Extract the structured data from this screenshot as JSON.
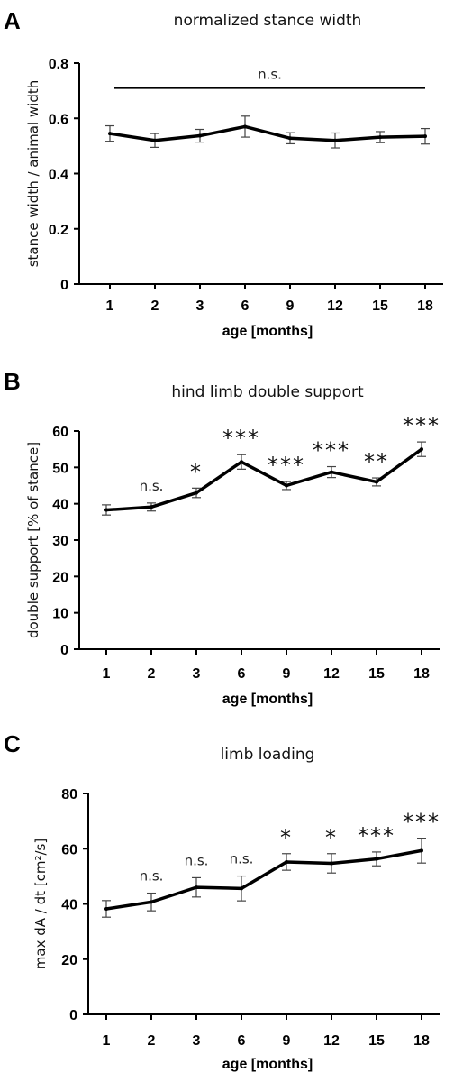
{
  "chart_data": [
    {
      "type": "line",
      "panel": "A",
      "title": "normalized stance width",
      "xlabel": "age [months]",
      "ylabel": "stance width / animal width",
      "categories": [
        "1",
        "2",
        "3",
        "6",
        "9",
        "12",
        "15",
        "18"
      ],
      "values": [
        0.545,
        0.52,
        0.537,
        0.57,
        0.528,
        0.52,
        0.532,
        0.535
      ],
      "errors": [
        0.028,
        0.025,
        0.023,
        0.038,
        0.02,
        0.027,
        0.02,
        0.028
      ],
      "ylim": [
        0,
        0.8
      ],
      "yticks": [
        "0",
        "0.2",
        "0.4",
        "0.6",
        "0.8"
      ],
      "bracket": {
        "from": "2",
        "to": "18",
        "y": 0.71,
        "label": "n.s."
      },
      "significance": []
    },
    {
      "type": "line",
      "panel": "B",
      "title": "hind limb double support",
      "xlabel": "age [months]",
      "ylabel": "double support [% of stance]",
      "categories": [
        "1",
        "2",
        "3",
        "6",
        "9",
        "12",
        "15",
        "18"
      ],
      "values": [
        38.3,
        39.1,
        43.0,
        51.5,
        45.0,
        48.7,
        46.0,
        55.0
      ],
      "errors": [
        1.4,
        1.1,
        1.3,
        2.0,
        1.1,
        1.5,
        1.1,
        2.0
      ],
      "ylim": [
        0,
        60
      ],
      "yticks": [
        "0",
        "10",
        "20",
        "30",
        "40",
        "50",
        "60"
      ],
      "significance": [
        "",
        "n.s.",
        "*",
        "***",
        "***",
        "***",
        "**",
        "***"
      ]
    },
    {
      "type": "line",
      "panel": "C",
      "title": "limb loading",
      "xlabel": "age [months]",
      "ylabel": "max dA / dt [cm²/s]",
      "categories": [
        "1",
        "2",
        "3",
        "6",
        "9",
        "12",
        "15",
        "18"
      ],
      "values": [
        38.2,
        40.7,
        46.0,
        45.6,
        55.2,
        54.7,
        56.3,
        59.3
      ],
      "errors": [
        3.0,
        3.2,
        3.5,
        4.5,
        3.0,
        3.5,
        2.5,
        4.5
      ],
      "ylim": [
        0,
        80
      ],
      "yticks": [
        "0",
        "20",
        "40",
        "60",
        "80"
      ],
      "significance": [
        "",
        "n.s.",
        "n.s.",
        "n.s.",
        "*",
        "*",
        "***",
        "***"
      ]
    }
  ]
}
